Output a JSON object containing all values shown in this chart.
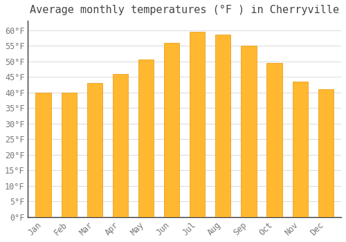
{
  "title": "Average monthly temperatures (°F ) in Cherryville",
  "months": [
    "Jan",
    "Feb",
    "Mar",
    "Apr",
    "May",
    "Jun",
    "Jul",
    "Aug",
    "Sep",
    "Oct",
    "Nov",
    "Dec"
  ],
  "values": [
    40.0,
    40.0,
    43.0,
    46.0,
    50.5,
    56.0,
    59.5,
    58.5,
    55.0,
    49.5,
    43.5,
    41.0
  ],
  "bar_color_top": "#FFA500",
  "bar_color_bottom": "#FFB830",
  "bar_edge_color": "#E8960A",
  "background_color": "#FFFFFF",
  "grid_color": "#DDDDDD",
  "text_color": "#777777",
  "spine_color": "#333333",
  "ylim": [
    0,
    63
  ],
  "yticks": [
    0,
    5,
    10,
    15,
    20,
    25,
    30,
    35,
    40,
    45,
    50,
    55,
    60
  ],
  "title_fontsize": 11,
  "tick_fontsize": 8.5,
  "bar_width": 0.6
}
